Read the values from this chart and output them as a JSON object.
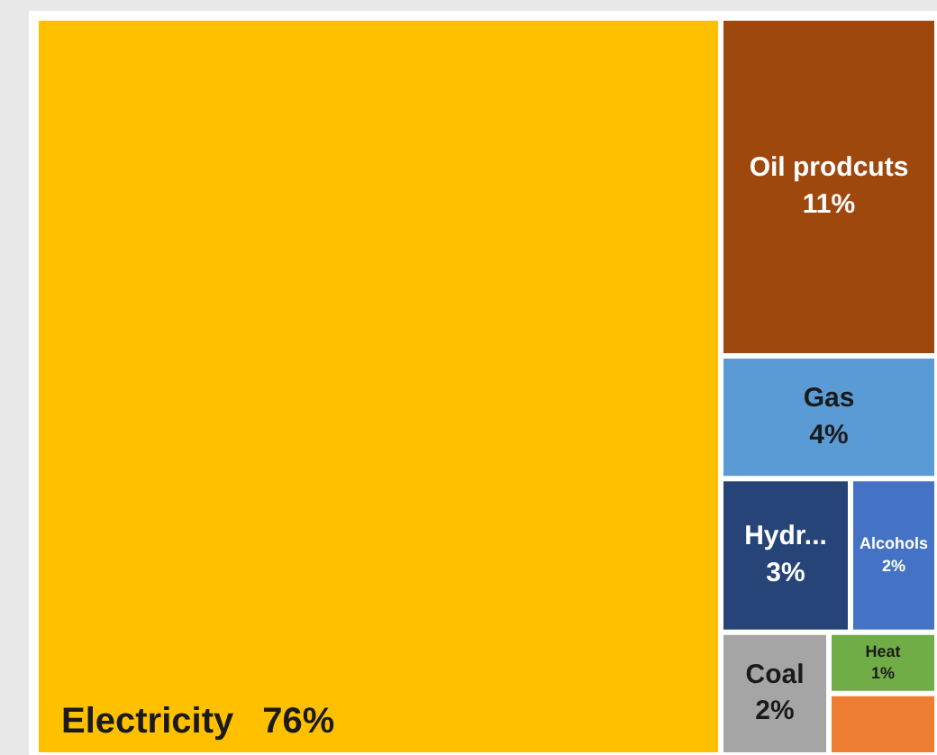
{
  "chart_data": {
    "type": "other",
    "categories": [
      "Electricity",
      "Oil prodcuts",
      "Gas",
      "Hydr...",
      "Alcohols",
      "Coal",
      "Heat",
      null
    ],
    "values": [
      76,
      11,
      4,
      3,
      2,
      2,
      1,
      null
    ],
    "value_labels": [
      "76%",
      "11%",
      "4%",
      "3%",
      "2%",
      "2%",
      "1%",
      null
    ],
    "colors": [
      "#ffc000",
      "#9e480e",
      "#5b9bd5",
      "#264478",
      "#4472c4",
      "#a5a5a5",
      "#70ad47",
      "#ed7d31"
    ]
  }
}
